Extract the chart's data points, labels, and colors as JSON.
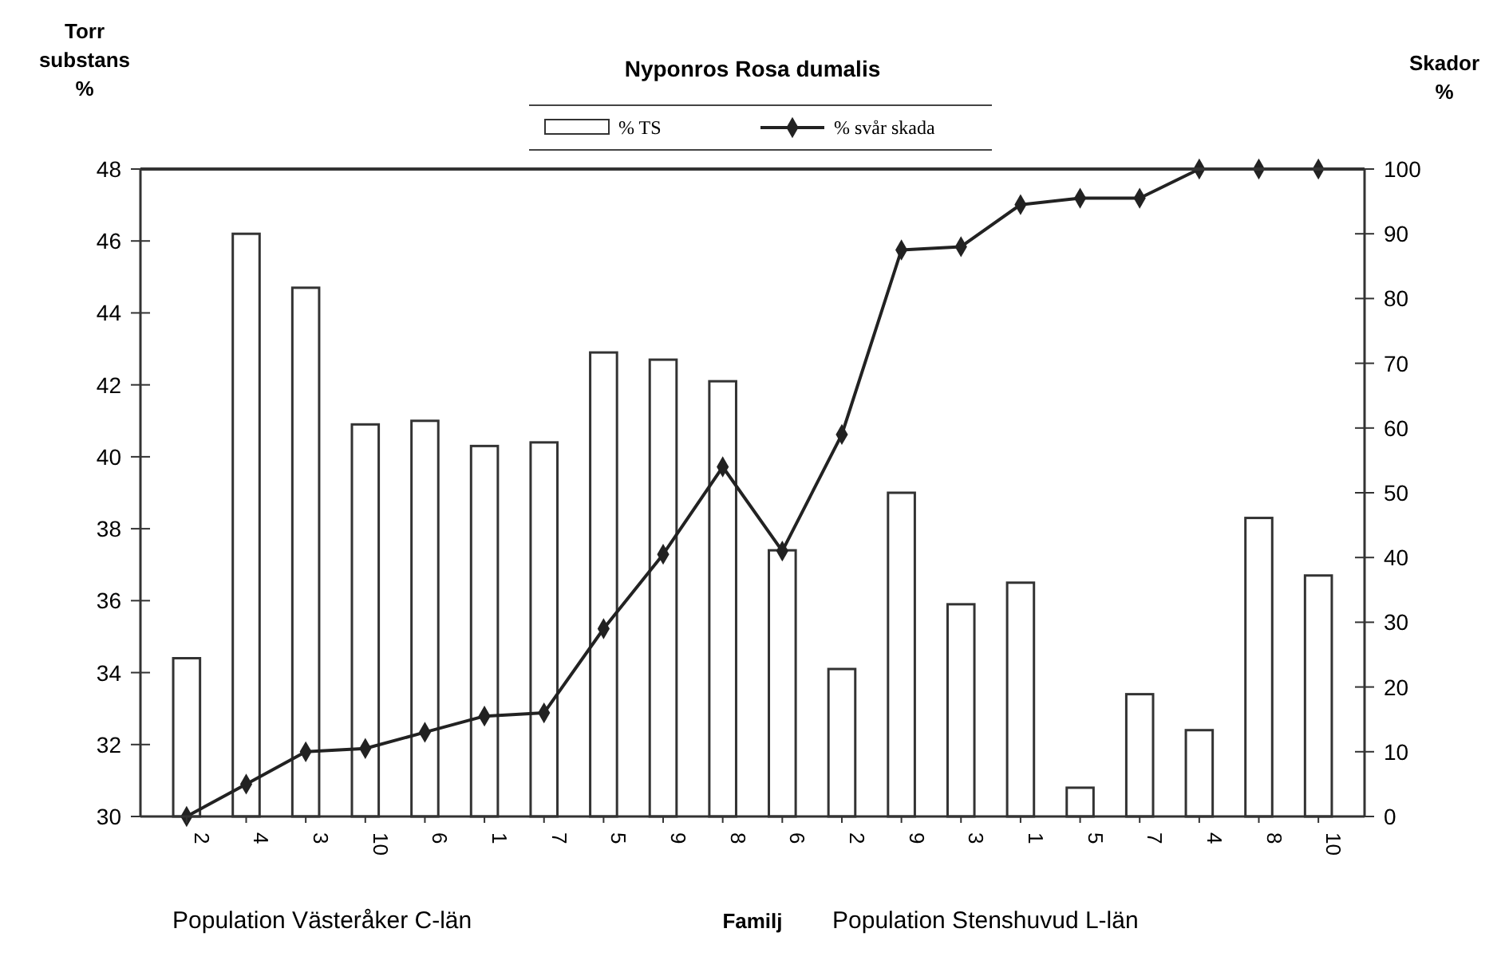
{
  "chart_data": {
    "type": "bar",
    "title": "Nyponros  Rosa dumalis",
    "ylabel": "Torr substans %",
    "y2label": "Skador %",
    "xlabel": "Familj",
    "annotations": [
      "Population Västeråker C-län",
      "Population Stenshuvud L-län"
    ],
    "categories": [
      "2",
      "4",
      "3",
      "10",
      "6",
      "1",
      "7",
      "5",
      "9",
      "8",
      "6",
      "2",
      "9",
      "3",
      "1",
      "5",
      "7",
      "4",
      "8",
      "10"
    ],
    "series": [
      {
        "name": "% TS",
        "color": "#ffffff",
        "values": [
          34.4,
          46.2,
          44.7,
          40.9,
          41.0,
          40.3,
          40.4,
          42.9,
          42.7,
          42.1,
          37.4,
          34.1,
          39.0,
          35.9,
          36.5,
          30.8,
          33.4,
          32.4,
          38.3,
          36.7
        ]
      },
      {
        "name": "% svår skada",
        "type": "line",
        "axis": "y2",
        "color": "#222222",
        "marker": "diamond",
        "values": [
          0,
          5,
          10,
          10.5,
          13,
          15.5,
          16,
          29,
          40.5,
          54,
          41,
          59,
          87.5,
          88,
          94.5,
          95.5,
          95.5,
          100,
          100,
          100
        ]
      }
    ],
    "ylim": [
      30,
      48
    ],
    "yticks": [
      30,
      32,
      34,
      36,
      38,
      40,
      42,
      44,
      46,
      48
    ],
    "y2lim": [
      0,
      100
    ],
    "y2ticks": [
      0,
      10,
      20,
      30,
      40,
      50,
      60,
      70,
      80,
      90,
      100
    ],
    "grid": false,
    "legend": "top"
  }
}
